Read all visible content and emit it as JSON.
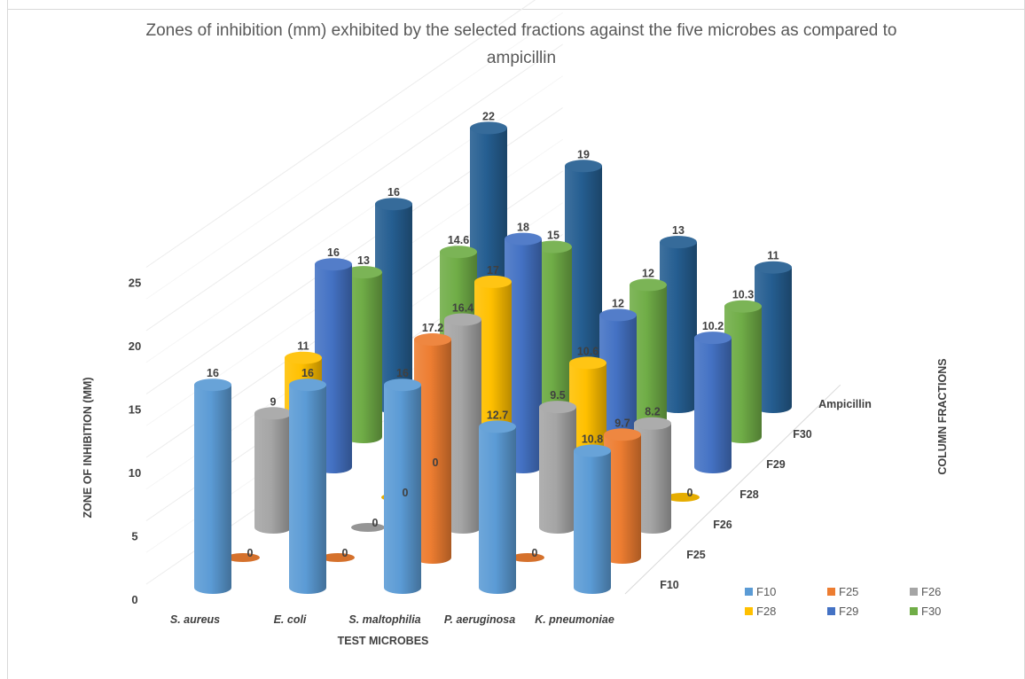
{
  "chart_data": {
    "type": "bar",
    "subtype": "3d-cylinder",
    "title": "Zones of inhibition (mm) exhibited by the selected fractions against the five microbes as compared to ampicillin",
    "xlabel": "TEST MICROBES",
    "ylabel": "ZONE OF INHIBITION (MM)",
    "zlabel": "COLUMN FRACTIONS",
    "categories": [
      "S. aureus",
      "E. coli",
      "S. maltophilia",
      "P. aeruginosa",
      "K. pneumoniae"
    ],
    "y_ticks": [
      "0",
      "5",
      "10",
      "15",
      "20",
      "25"
    ],
    "ylim": [
      0,
      25
    ],
    "grid": true,
    "legend_position": "bottom-right",
    "series": [
      {
        "name": "F10",
        "color": "#5b9bd5",
        "values": [
          16,
          16,
          16,
          12.7,
          10.8
        ],
        "labels": [
          "16",
          "16",
          "16",
          "12.7",
          "10.8"
        ]
      },
      {
        "name": "F25",
        "color": "#ed7d31",
        "values": [
          0,
          0,
          17.2,
          0,
          9.7
        ],
        "labels": [
          "0",
          "0",
          "17.2",
          "0",
          "9.7"
        ]
      },
      {
        "name": "F26",
        "color": "#a5a5a5",
        "values": [
          9,
          0,
          16.4,
          9.5,
          8.2
        ],
        "labels": [
          "9",
          "0",
          "16.4",
          "9.5",
          "8.2"
        ]
      },
      {
        "name": "F28",
        "color": "#ffc000",
        "values": [
          11,
          0,
          17,
          10.6,
          0
        ],
        "labels": [
          "11",
          "0",
          "17",
          "10.6",
          "0"
        ]
      },
      {
        "name": "F29",
        "color": "#4472c4",
        "values": [
          16,
          0,
          18,
          12,
          10.2
        ],
        "labels": [
          "16",
          "0",
          "18",
          "12",
          "10.2"
        ]
      },
      {
        "name": "F30",
        "color": "#70ad47",
        "values": [
          13,
          14.6,
          15,
          12,
          10.3
        ],
        "labels": [
          "13",
          "14.6",
          "15",
          "12",
          "10.3"
        ]
      },
      {
        "name": "Ampicillin",
        "color": "#255e91",
        "values": [
          16,
          22,
          19,
          13,
          11
        ],
        "labels": [
          "16",
          "22",
          "19",
          "13",
          "11"
        ]
      }
    ],
    "depth_labels": [
      "F10",
      "F25",
      "F26",
      "F28",
      "F29",
      "F30",
      "Ampicillin"
    ],
    "legend": [
      "F10",
      "F25",
      "F26",
      "F28",
      "F29",
      "F30"
    ]
  }
}
